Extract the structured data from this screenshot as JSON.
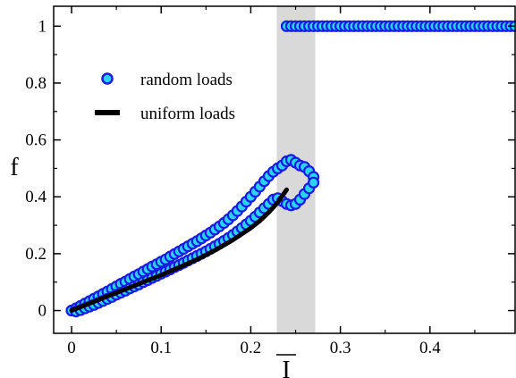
{
  "chart_data": {
    "type": "scatter",
    "xlabel": "I",
    "ylabel": "f",
    "xlim": [
      -0.02,
      0.495
    ],
    "ylim": [
      -0.08,
      1.07
    ],
    "x_ticks": [
      "0",
      "0.1",
      "0.2",
      "0.3",
      "0.4"
    ],
    "x_tick_values": [
      0,
      0.1,
      0.2,
      0.3,
      0.4
    ],
    "y_ticks": [
      "0",
      "0.2",
      "0.4",
      "0.6",
      "0.8",
      "1"
    ],
    "y_tick_values": [
      0,
      0.2,
      0.4,
      0.6,
      0.8,
      1.0
    ],
    "grid": false,
    "legend_placement": "upper-left",
    "shaded_band": {
      "x_range": [
        0.229,
        0.272
      ],
      "color": "#d9d9d9"
    },
    "colors": {
      "marker_fill": "#29d4f0",
      "marker_edge": "#1a1ae6",
      "line": "#000000"
    },
    "series": [
      {
        "name": "random loads",
        "kind": "markers",
        "x": [
          0,
          0.005,
          0.01,
          0.015,
          0.02,
          0.025,
          0.03,
          0.035,
          0.04,
          0.045,
          0.05,
          0.055,
          0.06,
          0.065,
          0.07,
          0.075,
          0.08,
          0.085,
          0.09,
          0.095,
          0.1,
          0.105,
          0.11,
          0.115,
          0.12,
          0.125,
          0.13,
          0.135,
          0.14,
          0.145,
          0.15,
          0.155,
          0.16,
          0.165,
          0.17,
          0.175,
          0.18,
          0.185,
          0.19,
          0.195,
          0.2,
          0.205,
          0.21,
          0.215,
          0.22,
          0.225,
          0.23,
          0.235,
          0.24,
          0.245,
          0.25,
          0.255,
          0.26,
          0.265,
          0.27,
          0.005,
          0.01,
          0.015,
          0.02,
          0.025,
          0.03,
          0.035,
          0.04,
          0.045,
          0.05,
          0.055,
          0.06,
          0.065,
          0.07,
          0.075,
          0.08,
          0.085,
          0.09,
          0.095,
          0.1,
          0.105,
          0.11,
          0.115,
          0.12,
          0.125,
          0.13,
          0.135,
          0.14,
          0.145,
          0.15,
          0.155,
          0.16,
          0.165,
          0.17,
          0.175,
          0.18,
          0.185,
          0.19,
          0.195,
          0.2,
          0.205,
          0.21,
          0.215,
          0.22,
          0.225,
          0.23,
          0.235,
          0.24,
          0.245,
          0.25,
          0.255,
          0.26,
          0.265,
          0.27,
          0.24,
          0.245,
          0.25,
          0.255,
          0.26,
          0.265,
          0.27,
          0.275,
          0.28,
          0.285,
          0.29,
          0.295,
          0.3,
          0.305,
          0.31,
          0.315,
          0.32,
          0.325,
          0.33,
          0.335,
          0.34,
          0.345,
          0.35,
          0.355,
          0.36,
          0.365,
          0.37,
          0.375,
          0.38,
          0.385,
          0.39,
          0.395,
          0.4,
          0.405,
          0.41,
          0.415,
          0.42,
          0.425,
          0.43,
          0.435,
          0.44,
          0.445,
          0.45,
          0.455,
          0.46,
          0.465,
          0.47,
          0.475,
          0.48,
          0.485,
          0.49,
          0.495
        ],
        "y": [
          0,
          0.008,
          0.016,
          0.025,
          0.033,
          0.042,
          0.05,
          0.059,
          0.067,
          0.076,
          0.085,
          0.094,
          0.102,
          0.111,
          0.12,
          0.128,
          0.137,
          0.146,
          0.155,
          0.163,
          0.172,
          0.18,
          0.19,
          0.199,
          0.208,
          0.217,
          0.226,
          0.235,
          0.244,
          0.254,
          0.264,
          0.274,
          0.285,
          0.296,
          0.308,
          0.321,
          0.335,
          0.35,
          0.366,
          0.383,
          0.4,
          0.418,
          0.436,
          0.455,
          0.473,
          0.488,
          0.5,
          0.51,
          0.525,
          0.53,
          0.52,
          0.51,
          0.505,
          0.49,
          0.47,
          -0.003,
          0.002,
          0.008,
          0.014,
          0.02,
          0.027,
          0.034,
          0.041,
          0.048,
          0.056,
          0.063,
          0.07,
          0.078,
          0.085,
          0.092,
          0.1,
          0.107,
          0.115,
          0.122,
          0.13,
          0.137,
          0.145,
          0.153,
          0.16,
          0.168,
          0.176,
          0.184,
          0.192,
          0.2,
          0.208,
          0.217,
          0.226,
          0.235,
          0.245,
          0.255,
          0.266,
          0.278,
          0.29,
          0.303,
          0.316,
          0.33,
          0.345,
          0.36,
          0.375,
          0.39,
          0.395,
          0.385,
          0.375,
          0.37,
          0.375,
          0.39,
          0.41,
          0.43,
          0.45,
          1,
          1,
          1,
          1,
          1,
          1,
          1,
          1,
          1,
          1,
          1,
          1,
          1,
          1,
          1,
          1,
          1,
          1,
          1,
          1,
          1,
          1,
          1,
          1,
          1,
          1,
          1,
          1,
          1,
          1,
          1,
          1,
          1,
          1,
          1,
          1,
          1,
          1,
          1,
          1,
          1,
          1,
          1,
          1,
          1,
          1,
          1,
          1,
          1,
          1,
          1,
          1
        ]
      },
      {
        "name": "uniform loads",
        "kind": "line",
        "x": [
          0,
          0.02,
          0.04,
          0.06,
          0.08,
          0.1,
          0.12,
          0.14,
          0.16,
          0.18,
          0.2,
          0.21,
          0.22,
          0.23,
          0.24
        ],
        "y": [
          0,
          0.025,
          0.05,
          0.075,
          0.1,
          0.125,
          0.152,
          0.18,
          0.212,
          0.248,
          0.29,
          0.315,
          0.345,
          0.38,
          0.425
        ]
      }
    ]
  }
}
